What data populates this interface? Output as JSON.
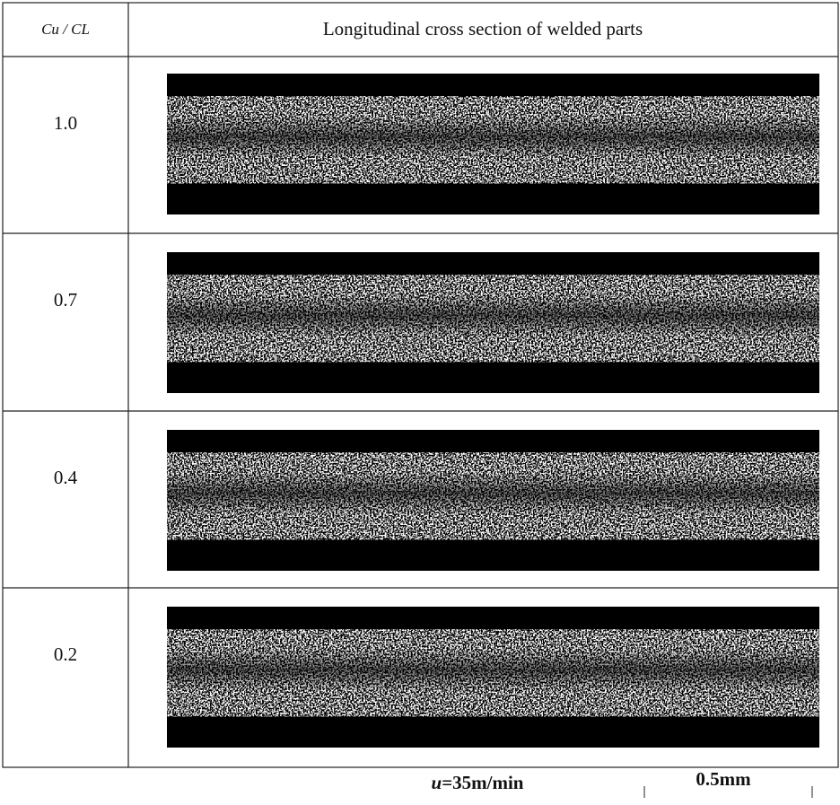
{
  "table": {
    "header": [
      "Cu / CL",
      "Longitudinal cross section of welded parts"
    ],
    "rows": [
      "1.0",
      "0.7",
      "0.4",
      "0.2"
    ]
  },
  "caption": {
    "symbol": "u",
    "text": "=35m/min",
    "scale": "0.5mm"
  }
}
